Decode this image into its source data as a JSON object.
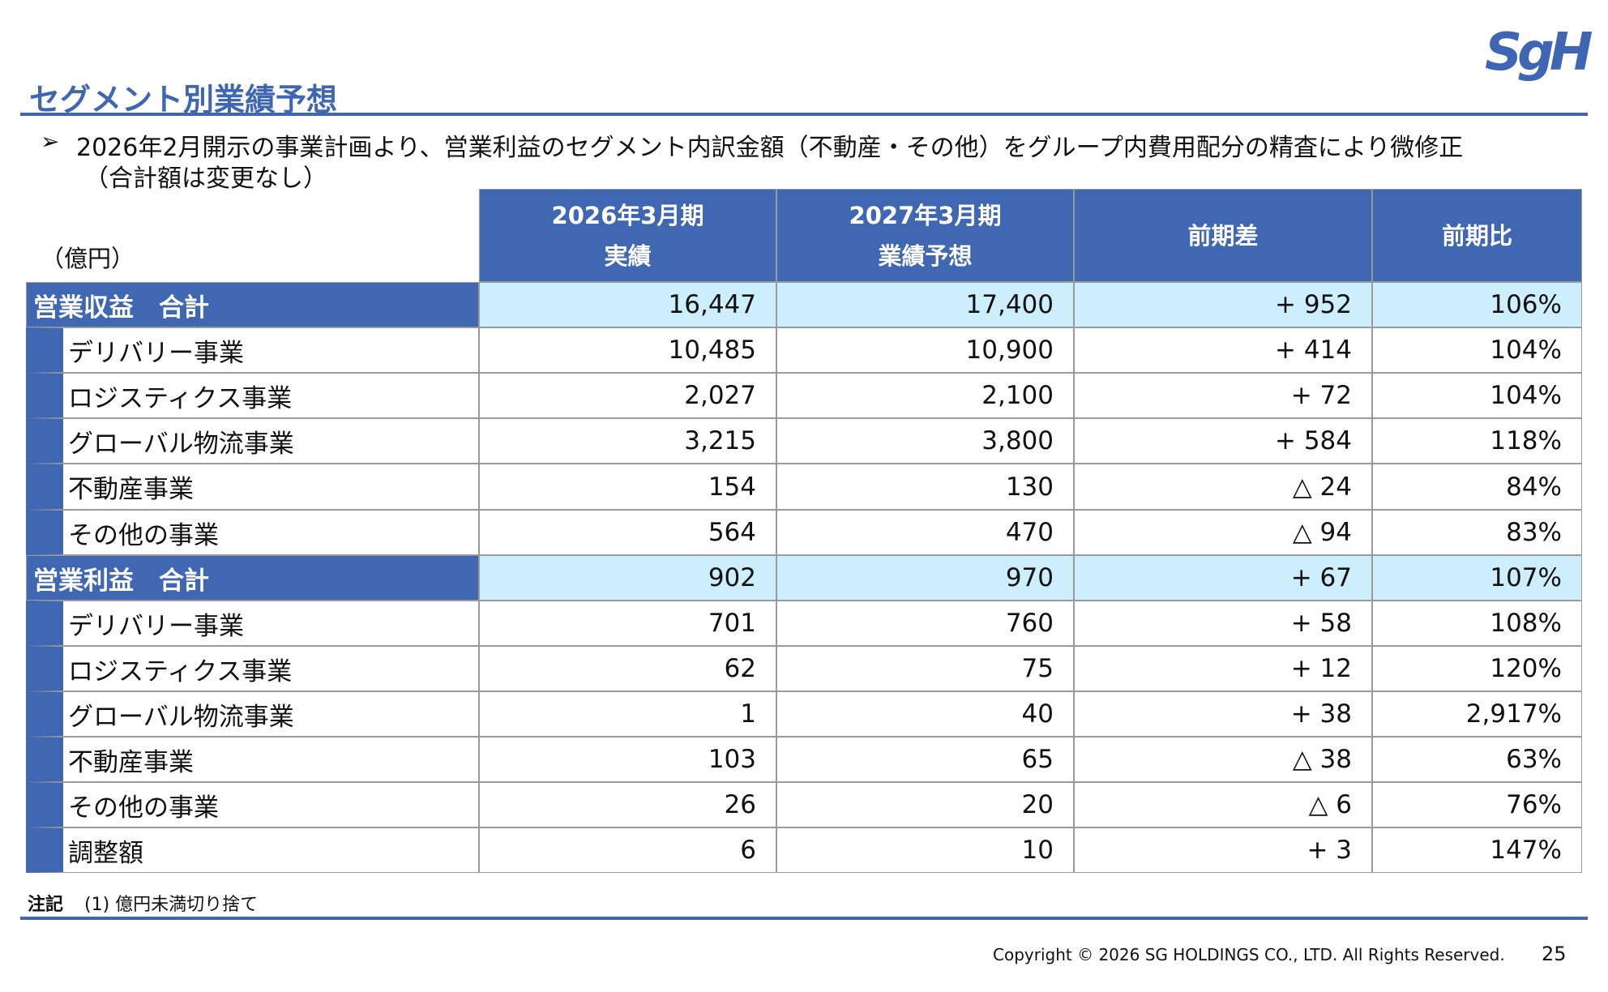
{
  "header": {
    "title": "セグメント別業績予想",
    "logo": "SgH"
  },
  "bullets": [
    "2026年2月開示の事業計画より、営業利益のセグメント内訳金額（不動産・その他）をグループ内費用配分の精査により微修正",
    "（合計額は変更なし）"
  ],
  "table": {
    "unit": "（億円）",
    "columns": [
      [
        "2026年3月期",
        "実績"
      ],
      [
        "2027年3月期",
        "業績予想"
      ],
      [
        "前期差"
      ],
      [
        "前期比"
      ]
    ],
    "groups": [
      {
        "label": "営業収益　合計",
        "values": [
          "16,447",
          "17,400",
          "+ 952",
          "106%"
        ],
        "items": [
          {
            "label": "デリバリー事業",
            "values": [
              "10,485",
              "10,900",
              "+ 414",
              "104%"
            ]
          },
          {
            "label": "ロジスティクス事業",
            "values": [
              "2,027",
              "2,100",
              "+ 72",
              "104%"
            ]
          },
          {
            "label": "グローバル物流事業",
            "values": [
              "3,215",
              "3,800",
              "+ 584",
              "118%"
            ]
          },
          {
            "label": "不動産事業",
            "values": [
              "154",
              "130",
              "△ 24",
              "84%"
            ]
          },
          {
            "label": "その他の事業",
            "values": [
              "564",
              "470",
              "△ 94",
              "83%"
            ]
          }
        ]
      },
      {
        "label": "営業利益　合計",
        "values": [
          "902",
          "970",
          "+ 67",
          "107%"
        ],
        "items": [
          {
            "label": "デリバリー事業",
            "values": [
              "701",
              "760",
              "+ 58",
              "108%"
            ]
          },
          {
            "label": "ロジスティクス事業",
            "values": [
              "62",
              "75",
              "+ 12",
              "120%"
            ]
          },
          {
            "label": "グローバル物流事業",
            "values": [
              "1",
              "40",
              "+ 38",
              "2,917%"
            ]
          },
          {
            "label": "不動産事業",
            "values": [
              "103",
              "65",
              "△ 38",
              "63%"
            ]
          },
          {
            "label": "その他の事業",
            "values": [
              "26",
              "20",
              "△ 6",
              "76%"
            ]
          },
          {
            "label": "調整額",
            "values": [
              "6",
              "10",
              "+ 3",
              "147%"
            ]
          }
        ]
      }
    ]
  },
  "note": {
    "heading": "注記",
    "text": "(1) 億円未満切り捨て"
  },
  "footer": {
    "copyright": "Copyright © 2026 SG HOLDINGS CO., LTD.  All Rights Reserved.",
    "page": "25"
  }
}
